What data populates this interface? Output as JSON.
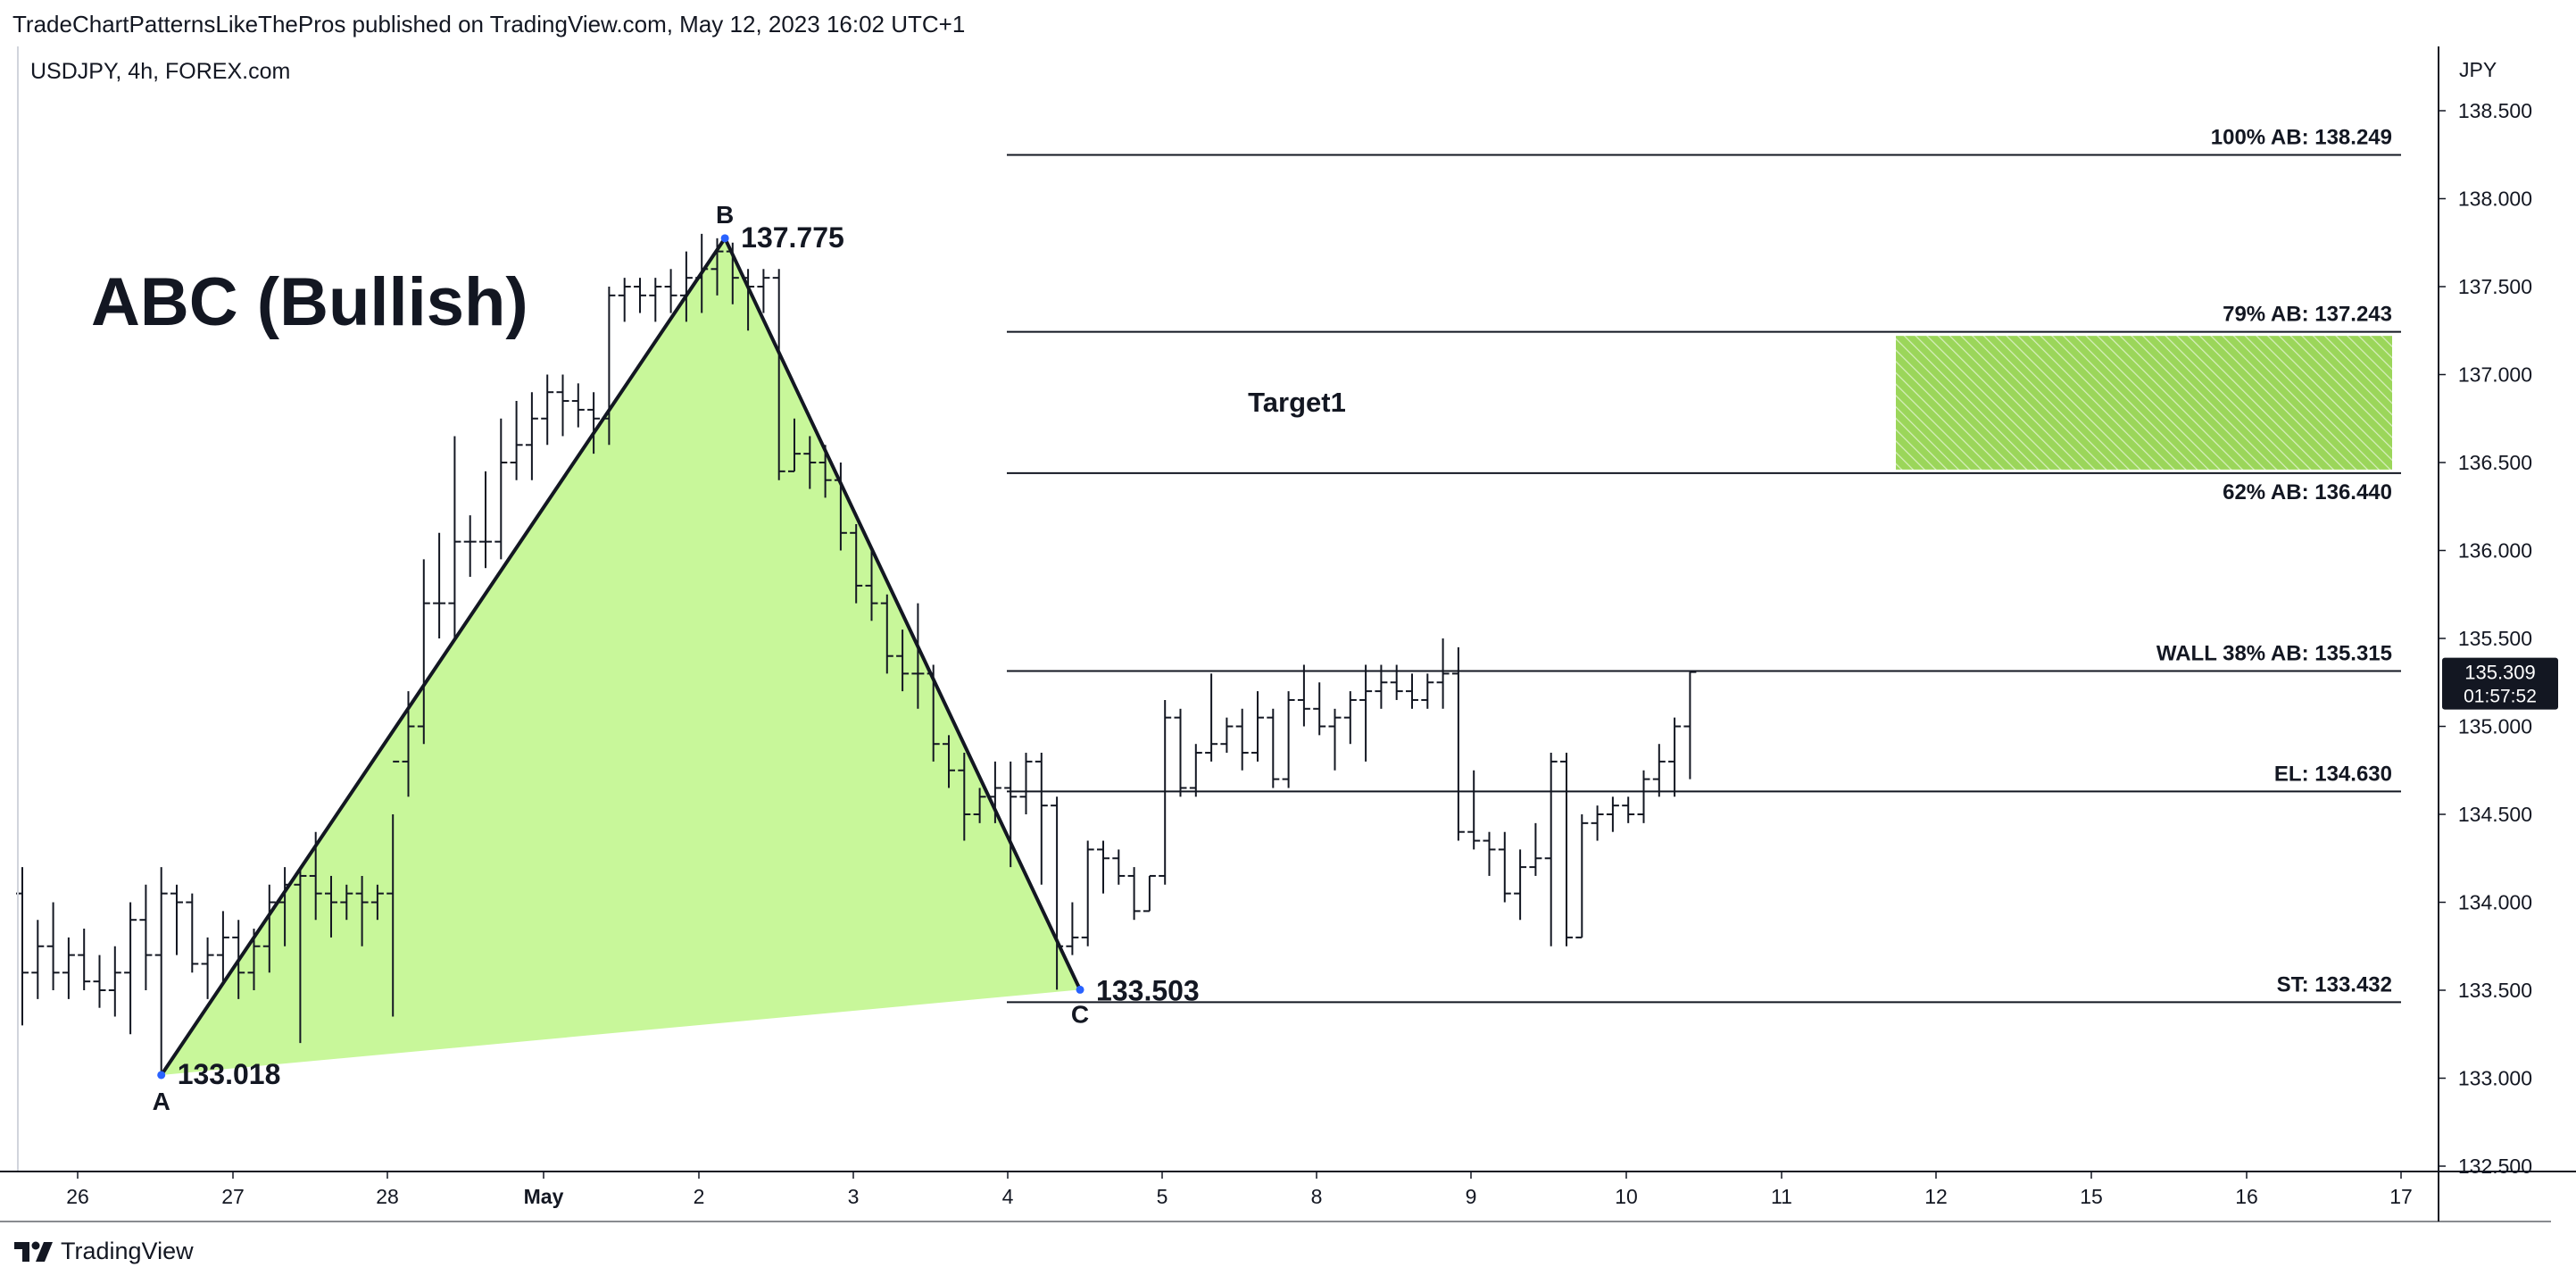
{
  "header": {
    "published_line": "TradeChartPatternsLikeThePros published on TradingView.com, May 12, 2023 16:02 UTC+1",
    "symbol_line": "USDJPY, 4h, FOREX.com"
  },
  "footer": {
    "brand": "TradingView",
    "logo_icon": "tradingview-logo-icon"
  },
  "colors": {
    "pattern_fill": "#c8f79a",
    "target_zone": "#9bd65a",
    "price_tag_bg": "#131722",
    "point_marker": "#2962ff"
  },
  "chart_data": {
    "type": "ohlc-bar",
    "symbol": "USDJPY",
    "timeframe": "4h",
    "y_axis": {
      "unit_label": "JPY",
      "ylim": [
        132.5,
        138.7
      ],
      "ticks": [
        "132.500",
        "133.000",
        "133.500",
        "134.000",
        "134.500",
        "135.000",
        "135.500",
        "136.000",
        "136.500",
        "137.000",
        "137.500",
        "138.000",
        "138.500"
      ]
    },
    "x_axis": {
      "ticks": [
        "26",
        "27",
        "28",
        "May",
        "2",
        "3",
        "4",
        "5",
        "8",
        "9",
        "10",
        "11",
        "12",
        "15",
        "16",
        "17"
      ]
    },
    "pattern_title": "ABC (Bullish)",
    "points": [
      {
        "label": "A",
        "value_label": "133.018",
        "price": 133.018,
        "bar": 9
      },
      {
        "label": "B",
        "value_label": "137.775",
        "price": 137.775,
        "bar": 45.5
      },
      {
        "label": "C",
        "value_label": "133.503",
        "price": 133.503,
        "bar": 68.5
      }
    ],
    "levels": [
      {
        "label": "100% AB: 138.249",
        "price": 138.249
      },
      {
        "label": "79% AB: 137.243",
        "price": 137.243
      },
      {
        "label": "62% AB: 136.440",
        "price": 136.44
      },
      {
        "label": "WALL 38% AB: 135.315",
        "price": 135.315
      },
      {
        "label": "EL: 134.630",
        "price": 134.63
      },
      {
        "label": "ST: 133.432",
        "price": 133.432
      }
    ],
    "target": {
      "label": "Target1",
      "from": 136.46,
      "to": 137.22
    },
    "last_price": {
      "price_label": "135.309",
      "countdown": "01:57:52",
      "price": 135.309
    },
    "bars": [
      [
        134.05,
        134.2,
        133.3,
        133.6
      ],
      [
        133.6,
        133.9,
        133.45,
        133.75
      ],
      [
        133.75,
        134.0,
        133.5,
        133.6
      ],
      [
        133.6,
        133.8,
        133.45,
        133.7
      ],
      [
        133.7,
        133.85,
        133.5,
        133.55
      ],
      [
        133.55,
        133.7,
        133.4,
        133.5
      ],
      [
        133.5,
        133.75,
        133.35,
        133.6
      ],
      [
        133.6,
        134.0,
        133.25,
        133.9
      ],
      [
        133.9,
        134.1,
        133.5,
        133.7
      ],
      [
        133.7,
        134.2,
        133.02,
        134.05
      ],
      [
        134.05,
        134.1,
        133.7,
        134.0
      ],
      [
        134.0,
        134.05,
        133.6,
        133.65
      ],
      [
        133.65,
        133.8,
        133.45,
        133.7
      ],
      [
        133.7,
        133.95,
        133.55,
        133.8
      ],
      [
        133.8,
        133.9,
        133.45,
        133.6
      ],
      [
        133.6,
        133.85,
        133.5,
        133.75
      ],
      [
        133.75,
        134.1,
        133.6,
        134.0
      ],
      [
        134.0,
        134.2,
        133.75,
        134.1
      ],
      [
        134.1,
        134.2,
        133.2,
        134.15
      ],
      [
        134.15,
        134.4,
        133.9,
        134.05
      ],
      [
        134.05,
        134.15,
        133.8,
        134.0
      ],
      [
        134.0,
        134.1,
        133.9,
        134.05
      ],
      [
        134.05,
        134.15,
        133.75,
        134.0
      ],
      [
        134.0,
        134.1,
        133.9,
        134.05
      ],
      [
        134.05,
        134.5,
        133.35,
        134.8
      ],
      [
        134.8,
        135.2,
        134.6,
        135.0
      ],
      [
        135.0,
        135.95,
        134.9,
        135.7
      ],
      [
        135.7,
        136.1,
        135.5,
        135.7
      ],
      [
        135.7,
        136.65,
        135.5,
        136.05
      ],
      [
        136.05,
        136.2,
        135.85,
        136.05
      ],
      [
        136.05,
        136.45,
        135.9,
        136.05
      ],
      [
        136.05,
        136.75,
        135.95,
        136.5
      ],
      [
        136.5,
        136.85,
        136.4,
        136.6
      ],
      [
        136.6,
        136.9,
        136.4,
        136.75
      ],
      [
        136.75,
        137.0,
        136.6,
        136.9
      ],
      [
        136.9,
        137.0,
        136.65,
        136.85
      ],
      [
        136.85,
        136.95,
        136.7,
        136.8
      ],
      [
        136.8,
        136.9,
        136.55,
        136.75
      ],
      [
        136.75,
        137.5,
        136.6,
        137.45
      ],
      [
        137.45,
        137.55,
        137.3,
        137.5
      ],
      [
        137.5,
        137.55,
        137.35,
        137.45
      ],
      [
        137.45,
        137.55,
        137.3,
        137.5
      ],
      [
        137.5,
        137.6,
        137.35,
        137.45
      ],
      [
        137.45,
        137.7,
        137.3,
        137.55
      ],
      [
        137.55,
        137.8,
        137.35,
        137.6
      ],
      [
        137.6,
        137.775,
        137.45,
        137.7
      ],
      [
        137.7,
        137.75,
        137.4,
        137.55
      ],
      [
        137.55,
        137.6,
        137.25,
        137.5
      ],
      [
        137.5,
        137.6,
        137.35,
        137.55
      ],
      [
        137.55,
        137.6,
        136.4,
        136.45
      ],
      [
        136.45,
        136.75,
        136.45,
        136.55
      ],
      [
        136.55,
        136.65,
        136.35,
        136.5
      ],
      [
        136.5,
        136.6,
        136.3,
        136.4
      ],
      [
        136.4,
        136.5,
        136.0,
        136.1
      ],
      [
        136.1,
        136.15,
        135.7,
        135.8
      ],
      [
        135.8,
        136.0,
        135.6,
        135.7
      ],
      [
        135.7,
        135.75,
        135.3,
        135.4
      ],
      [
        135.4,
        135.55,
        135.2,
        135.3
      ],
      [
        135.3,
        135.7,
        135.1,
        135.3
      ],
      [
        135.3,
        135.35,
        134.8,
        134.9
      ],
      [
        134.9,
        134.95,
        134.65,
        134.75
      ],
      [
        134.75,
        134.85,
        134.35,
        134.5
      ],
      [
        134.5,
        134.65,
        134.45,
        134.6
      ],
      [
        134.6,
        134.8,
        134.45,
        134.65
      ],
      [
        134.65,
        134.8,
        134.2,
        134.6
      ],
      [
        134.6,
        134.85,
        134.5,
        134.8
      ],
      [
        134.8,
        134.85,
        134.1,
        134.55
      ],
      [
        134.55,
        134.6,
        133.503,
        133.75
      ],
      [
        133.75,
        134.0,
        133.7,
        133.8
      ],
      [
        133.8,
        134.35,
        133.75,
        134.3
      ],
      [
        134.3,
        134.35,
        134.05,
        134.25
      ],
      [
        134.25,
        134.3,
        134.1,
        134.15
      ],
      [
        134.15,
        134.2,
        133.9,
        133.95
      ],
      [
        133.95,
        134.15,
        133.95,
        134.15
      ],
      [
        134.15,
        135.15,
        134.1,
        135.05
      ],
      [
        135.05,
        135.1,
        134.6,
        134.65
      ],
      [
        134.65,
        134.9,
        134.6,
        134.85
      ],
      [
        134.85,
        135.3,
        134.8,
        134.9
      ],
      [
        134.9,
        135.05,
        134.85,
        135.0
      ],
      [
        135.0,
        135.1,
        134.75,
        134.85
      ],
      [
        134.85,
        135.2,
        134.8,
        135.05
      ],
      [
        135.05,
        135.1,
        134.65,
        134.7
      ],
      [
        134.7,
        135.2,
        134.65,
        135.15
      ],
      [
        135.15,
        135.35,
        135.0,
        135.1
      ],
      [
        135.1,
        135.25,
        134.95,
        135.0
      ],
      [
        135.0,
        135.1,
        134.75,
        135.05
      ],
      [
        135.05,
        135.2,
        134.9,
        135.15
      ],
      [
        135.15,
        135.35,
        134.8,
        135.2
      ],
      [
        135.2,
        135.35,
        135.1,
        135.25
      ],
      [
        135.25,
        135.35,
        135.15,
        135.2
      ],
      [
        135.2,
        135.3,
        135.1,
        135.15
      ],
      [
        135.15,
        135.3,
        135.1,
        135.25
      ],
      [
        135.25,
        135.5,
        135.1,
        135.3
      ],
      [
        135.3,
        135.45,
        134.35,
        134.4
      ],
      [
        134.4,
        134.75,
        134.3,
        134.35
      ],
      [
        134.35,
        134.4,
        134.15,
        134.3
      ],
      [
        134.3,
        134.4,
        134.0,
        134.05
      ],
      [
        134.05,
        134.3,
        133.9,
        134.2
      ],
      [
        134.2,
        134.45,
        134.15,
        134.25
      ],
      [
        134.25,
        134.85,
        133.75,
        134.8
      ],
      [
        134.8,
        134.85,
        133.75,
        133.8
      ],
      [
        133.8,
        134.5,
        133.8,
        134.45
      ],
      [
        134.45,
        134.55,
        134.35,
        134.5
      ],
      [
        134.5,
        134.6,
        134.4,
        134.55
      ],
      [
        134.55,
        134.6,
        134.45,
        134.5
      ],
      [
        134.5,
        134.75,
        134.45,
        134.7
      ],
      [
        134.7,
        134.9,
        134.6,
        134.8
      ],
      [
        134.8,
        135.05,
        134.6,
        135.0
      ],
      [
        135.0,
        135.309,
        134.7,
        135.309
      ]
    ]
  }
}
